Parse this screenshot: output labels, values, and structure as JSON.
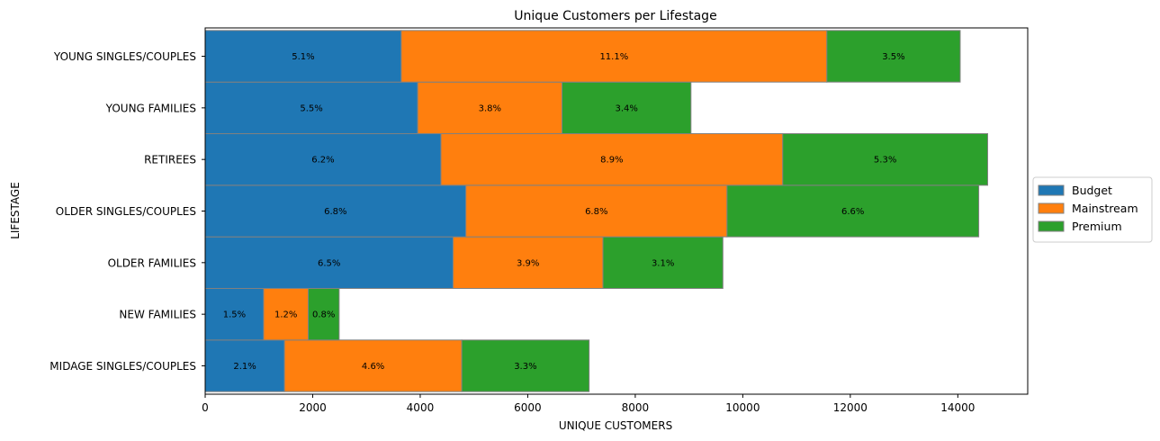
{
  "chart_data": {
    "type": "bar",
    "orientation": "horizontal",
    "stacked": true,
    "title": "Unique Customers per Lifestage",
    "xlabel": "UNIQUE CUSTOMERS",
    "ylabel": "LIFESTAGE",
    "xlim": [
      0,
      15300
    ],
    "x_ticks": [
      0,
      2000,
      4000,
      6000,
      8000,
      10000,
      12000,
      14000
    ],
    "grid": false,
    "legend_position": "right",
    "categories": [
      "MIDAGE SINGLES/COUPLES",
      "NEW FAMILIES",
      "OLDER FAMILIES",
      "OLDER SINGLES/COUPLES",
      "RETIREES",
      "YOUNG FAMILIES",
      "YOUNG SINGLES/COUPLES"
    ],
    "series": [
      {
        "name": "Budget",
        "color": "#1f77b4",
        "values": [
          1475,
          1087,
          4611,
          4849,
          4385,
          3953,
          3647
        ],
        "labels": [
          "2.1%",
          "1.5%",
          "6.5%",
          "6.8%",
          "6.2%",
          "5.5%",
          "5.1%"
        ]
      },
      {
        "name": "Mainstream",
        "color": "#ff7f0e",
        "values": [
          3298,
          830,
          2788,
          4858,
          6358,
          2685,
          7917
        ],
        "labels": [
          "4.6%",
          "1.2%",
          "3.9%",
          "6.8%",
          "8.9%",
          "3.8%",
          "11.1%"
        ]
      },
      {
        "name": "Premium",
        "color": "#2ca02c",
        "values": [
          2369,
          575,
          2231,
          4682,
          3812,
          2398,
          2480
        ],
        "labels": [
          "3.3%",
          "0.8%",
          "3.1%",
          "6.6%",
          "5.3%",
          "3.4%",
          "3.5%"
        ]
      }
    ]
  }
}
